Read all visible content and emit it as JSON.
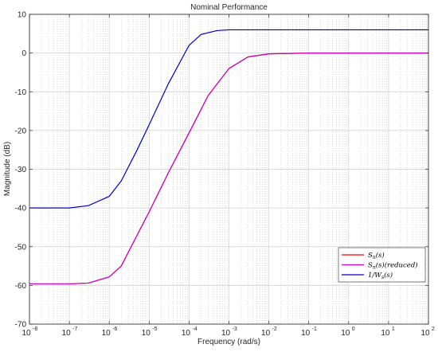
{
  "chart_data": {
    "type": "line",
    "title": "Nominal Performance",
    "xlabel": "Frequency  (rad/s)",
    "ylabel": "Magnitude (dB)",
    "xscale": "log",
    "xlim": [
      1e-08,
      100
    ],
    "ylim": [
      -70,
      10
    ],
    "grid": true,
    "minor_grid": true,
    "legend_location": "bottom-right",
    "x_ticks": [
      1e-08,
      1e-07,
      1e-06,
      1e-05,
      0.0001,
      0.001,
      0.01,
      0.1,
      1,
      10,
      100
    ],
    "x_tick_labels": [
      {
        "base": "10",
        "exp": "-8"
      },
      {
        "base": "10",
        "exp": "-7"
      },
      {
        "base": "10",
        "exp": "-6"
      },
      {
        "base": "10",
        "exp": "-5"
      },
      {
        "base": "10",
        "exp": "-4"
      },
      {
        "base": "10",
        "exp": "-3"
      },
      {
        "base": "10",
        "exp": "-2"
      },
      {
        "base": "10",
        "exp": "-1"
      },
      {
        "base": "10",
        "exp": "0"
      },
      {
        "base": "10",
        "exp": "1"
      },
      {
        "base": "10",
        "exp": "2"
      }
    ],
    "y_ticks": [
      -70,
      -60,
      -50,
      -40,
      -30,
      -20,
      -10,
      0,
      10
    ],
    "y_tick_labels": [
      "-70",
      "-60",
      "-50",
      "-40",
      "-30",
      "-20",
      "-10",
      "0",
      "10"
    ],
    "series": [
      {
        "name": "S_n(s)",
        "legend_main": "S",
        "legend_sub": "n",
        "legend_rest": "(s)",
        "color": "#ff0000",
        "x": [
          1e-08,
          1e-07,
          3e-07,
          1e-06,
          2e-06,
          5e-06,
          1e-05,
          3e-05,
          0.0001,
          0.0003,
          0.001,
          0.003,
          0.01,
          0.1,
          1,
          10,
          100
        ],
        "y": [
          -59.6,
          -59.6,
          -59.4,
          -57.8,
          -55,
          -47,
          -41,
          -31,
          -20.6,
          -11,
          -4,
          -1,
          -0.2,
          0,
          0,
          0,
          0
        ]
      },
      {
        "name": "S_n(s)(reduced)",
        "legend_main": "S",
        "legend_sub": "n",
        "legend_rest": "(s)(reduced)",
        "color": "#cc00cc",
        "x": [
          1e-08,
          1e-07,
          3e-07,
          1e-06,
          2e-06,
          5e-06,
          1e-05,
          3e-05,
          0.0001,
          0.0003,
          0.001,
          0.003,
          0.01,
          0.1,
          1,
          10,
          100
        ],
        "y": [
          -59.6,
          -59.6,
          -59.4,
          -57.8,
          -55,
          -47,
          -41,
          -31,
          -20.6,
          -11,
          -4,
          -1,
          -0.2,
          0,
          0,
          0,
          0
        ]
      },
      {
        "name": "1/W_s(s)",
        "legend_main": "1/W",
        "legend_sub": "s",
        "legend_rest": "(s)",
        "color": "#0000cc",
        "x": [
          1e-08,
          1e-07,
          3e-07,
          1e-06,
          2e-06,
          5e-06,
          1e-05,
          3e-05,
          0.0001,
          0.0002,
          0.0005,
          0.001,
          0.01,
          0.1,
          1,
          10,
          100
        ],
        "y": [
          -40,
          -40,
          -39.4,
          -37,
          -33,
          -25,
          -18.5,
          -8,
          2,
          4.8,
          5.8,
          6,
          6,
          6,
          6,
          6,
          6
        ]
      }
    ]
  }
}
